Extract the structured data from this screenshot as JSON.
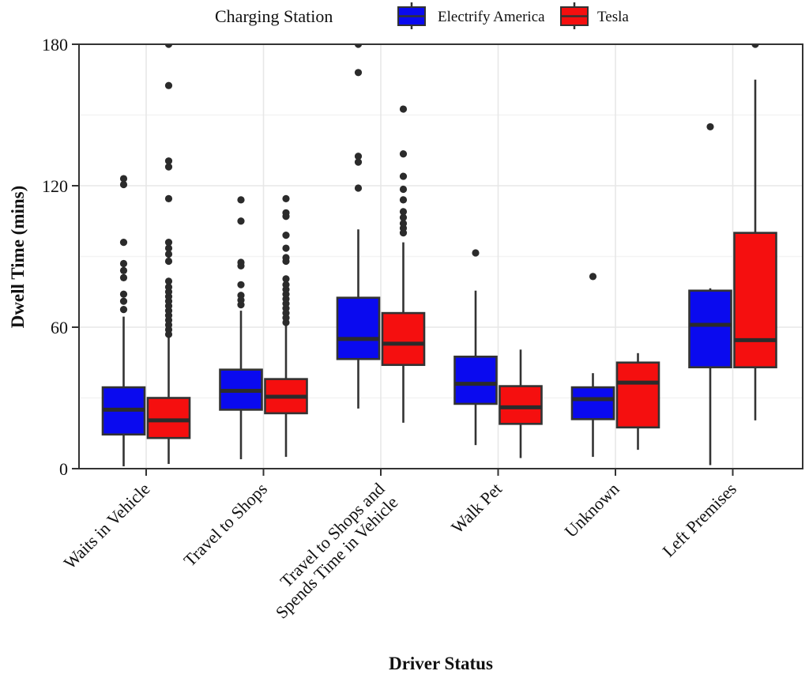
{
  "chart_data": {
    "type": "grouped_boxplot",
    "title": "",
    "xlabel": "Driver Status",
    "ylabel": "Dwell Time (mins)",
    "ylim": [
      0,
      180
    ],
    "yticks": [
      0,
      60,
      120,
      180
    ],
    "yticks_minor": [
      30,
      90,
      150
    ],
    "grid": "on",
    "legend": {
      "title": "Charging Station",
      "position": "top"
    },
    "categories": [
      "Waits in Vehicle",
      "Travel to Shops",
      "Travel to Shops and\nSpends Time in Vehicle",
      "Walk Pet",
      "Unknown",
      "Left Premises"
    ],
    "series": [
      {
        "name": "Electrify America",
        "color": "#0a0aef",
        "boxes": [
          {
            "min": 1,
            "q1": 14.5,
            "median": 25,
            "q3": 34.5,
            "max": 64.5,
            "outliers": [
              67.5,
              71,
              74,
              81,
              84,
              87,
              96,
              120.5,
              123
            ]
          },
          {
            "min": 4,
            "q1": 25,
            "median": 33,
            "q3": 42,
            "max": 67,
            "outliers": [
              69.5,
              71.5,
              73.5,
              78,
              86,
              87.5,
              105,
              114
            ]
          },
          {
            "min": 25.5,
            "q1": 46.5,
            "median": 55,
            "q3": 72.5,
            "max": 101.5,
            "outliers": [
              119,
              130,
              132.5,
              168,
              180
            ]
          },
          {
            "min": 10,
            "q1": 27.5,
            "median": 36,
            "q3": 47.5,
            "max": 75.5,
            "outliers": [
              91.5
            ]
          },
          {
            "min": 5,
            "q1": 21,
            "median": 29.5,
            "q3": 34.5,
            "max": 40.5,
            "outliers": [
              81.5
            ]
          },
          {
            "min": 1.5,
            "q1": 43,
            "median": 61,
            "q3": 75.5,
            "max": 76.5,
            "outliers": [
              145
            ]
          }
        ]
      },
      {
        "name": "Tesla",
        "color": "#f50f0f",
        "boxes": [
          {
            "min": 2,
            "q1": 13,
            "median": 20.5,
            "q3": 30,
            "max": 55.5,
            "outliers": [
              57,
              59,
              61,
              63,
              65,
              67,
              69,
              71,
              73,
              75,
              77,
              79.5,
              88,
              91,
              93.5,
              96,
              114.5,
              128,
              130.5,
              162.5,
              180
            ]
          },
          {
            "min": 5,
            "q1": 23.5,
            "median": 30.5,
            "q3": 38,
            "max": 60.5,
            "outliers": [
              62,
              64,
              66,
              68,
              70,
              72,
              74,
              76,
              78,
              80.5,
              88,
              89.5,
              93.5,
              99,
              107,
              108.5,
              114.5
            ]
          },
          {
            "min": 19.5,
            "q1": 44,
            "median": 53,
            "q3": 66,
            "max": 96,
            "outliers": [
              100,
              102,
              104,
              106.5,
              109,
              114,
              118.5,
              124,
              133.5,
              152.5
            ]
          },
          {
            "min": 4.5,
            "q1": 19,
            "median": 26,
            "q3": 35,
            "max": 50.5,
            "outliers": []
          },
          {
            "min": 8,
            "q1": 17.5,
            "median": 36.5,
            "q3": 45,
            "max": 49,
            "outliers": []
          },
          {
            "min": 20.5,
            "q1": 43,
            "median": 54.5,
            "q3": 100,
            "max": 165,
            "outliers": [
              180
            ]
          }
        ]
      }
    ]
  }
}
